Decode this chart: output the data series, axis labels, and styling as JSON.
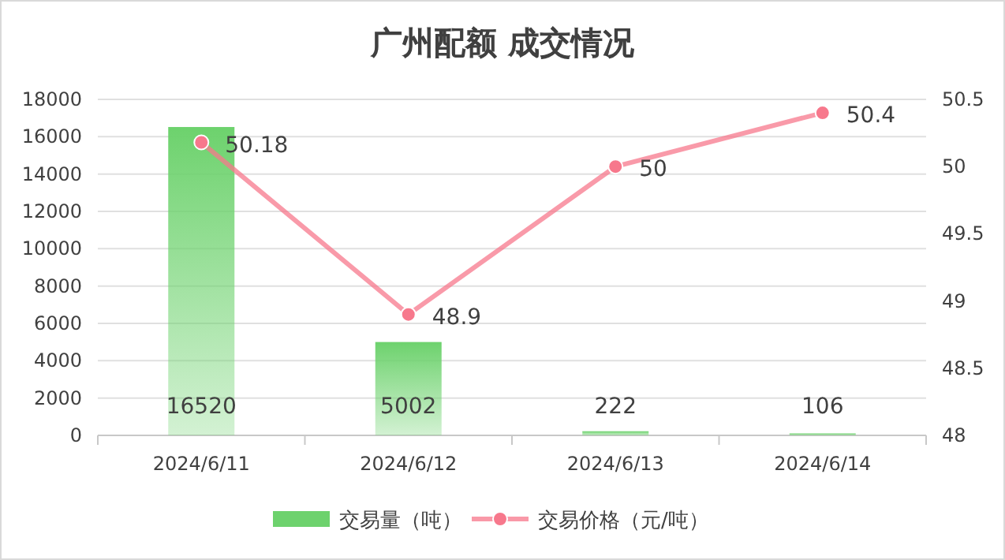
{
  "chart_data": {
    "type": "bar",
    "title": "广州配额 成交情况",
    "categories": [
      "2024/6/11",
      "2024/6/12",
      "2024/6/13",
      "2024/6/14"
    ],
    "series": [
      {
        "name": "交易量（吨）",
        "color": "#6dd26d",
        "values": [
          16520,
          5002,
          222,
          106
        ]
      },
      {
        "name": "交易价格（元/吨）",
        "type": "line",
        "axis": "y2",
        "color": "#f7788c",
        "values": [
          50.18,
          48.9,
          50,
          50.4
        ]
      }
    ],
    "ylim": [
      0,
      18000
    ],
    "yticks": [
      0,
      2000,
      4000,
      6000,
      8000,
      10000,
      12000,
      14000,
      16000,
      18000
    ],
    "y2lim": [
      48,
      50.5
    ],
    "y2ticks": [
      48,
      48.5,
      49,
      49.5,
      50,
      50.5
    ],
    "grid": "y",
    "legend": "bottom",
    "marker": "circle",
    "data_labels": true
  }
}
